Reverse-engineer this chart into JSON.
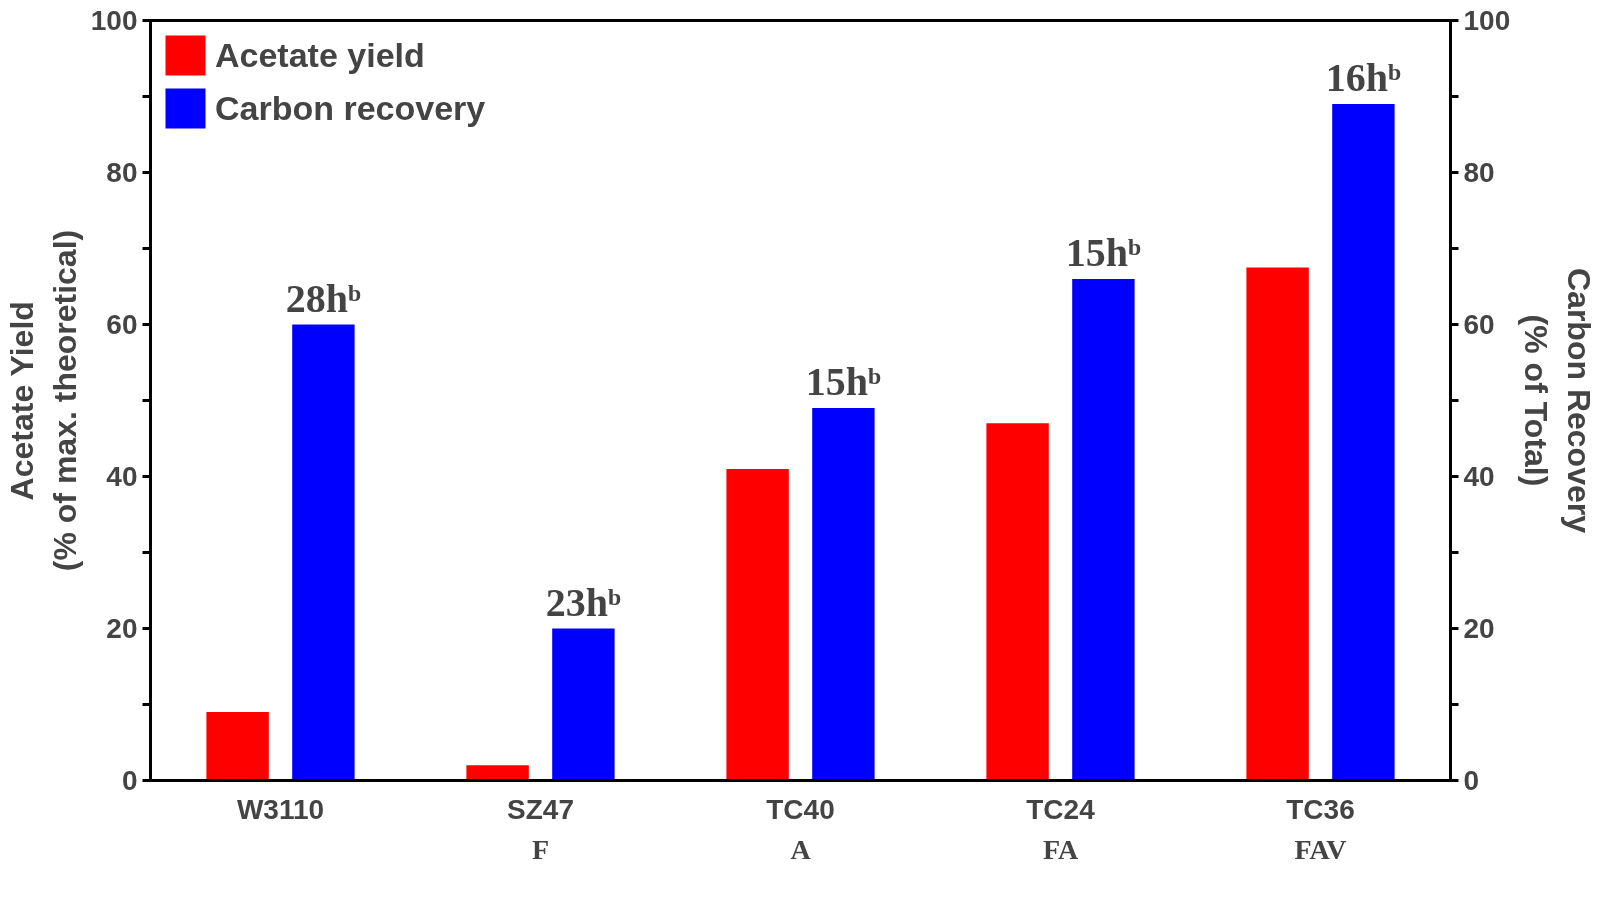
{
  "chart_data": {
    "type": "bar",
    "categories": [
      "W3110",
      "SZ47",
      "TC40",
      "TC24",
      "TC36"
    ],
    "ylabel": "Acetate Yield\n(% of max. theoretical)",
    "y2label": "Carbon Recovery\n(% of Total)",
    "series": [
      {
        "name": "Acetate yield",
        "color": "#ff0000",
        "values": [
          9,
          2,
          41,
          47,
          67.5
        ]
      },
      {
        "name": "Carbon recovery",
        "color": "#0000ff",
        "values": [
          60,
          20,
          49,
          66,
          89
        ],
        "axis": "y2"
      }
    ],
    "ylim": [
      0,
      100
    ],
    "yticks": [
      0,
      {
        "value": 10,
        "label": null
      },
      20,
      {
        "value": 30,
        "label": null
      },
      40,
      {
        "value": 50,
        "label": null
      },
      60,
      {
        "value": 70,
        "label": null
      },
      80,
      {
        "value": 90,
        "label": null
      },
      100
    ],
    "y2lim": [
      0,
      100
    ],
    "y2ticks": [
      0,
      {
        "value": 10,
        "label": null
      },
      20,
      {
        "value": 30,
        "label": null
      },
      40,
      {
        "value": 50,
        "label": null
      },
      60,
      {
        "value": 70,
        "label": null
      },
      80,
      {
        "value": 90,
        "label": null
      },
      100
    ],
    "annotations": [
      "28hᵇ",
      "23hᵇ",
      "15hᵇ",
      "15hᵇ",
      "16hᵇ",
      "F",
      "A",
      "FA",
      "FAV"
    ],
    "legend": "top left",
    "grid": false
  }
}
